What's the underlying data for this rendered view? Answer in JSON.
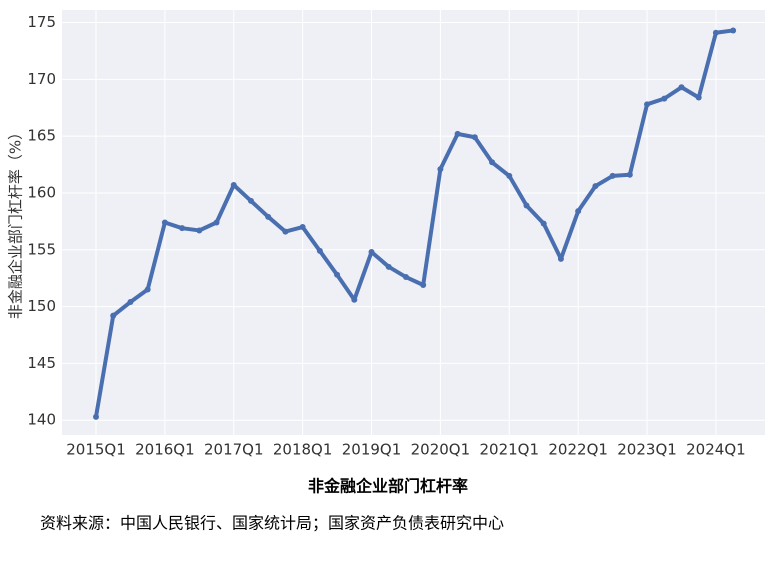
{
  "chart_data": {
    "type": "line",
    "y_label": "非金融企业部门杠杆率（%）",
    "caption": "非金融企业部门杠杆率",
    "source": "资料来源：中国人民银行、国家统计局；国家资产负债表研究中心",
    "categories": [
      "2015Q1",
      null,
      null,
      null,
      "2016Q1",
      null,
      null,
      null,
      "2017Q1",
      null,
      null,
      null,
      "2018Q1",
      null,
      null,
      null,
      "2019Q1",
      null,
      null,
      null,
      "2020Q1",
      null,
      null,
      null,
      "2021Q1",
      null,
      null,
      null,
      "2022Q1",
      null,
      null,
      null,
      "2023Q1",
      null,
      null,
      null,
      "2024Q1",
      null
    ],
    "series": [
      {
        "name": "非金融企业部门杠杆率",
        "color": "#4a6fb0",
        "values": [
          140.3,
          149.2,
          150.4,
          151.5,
          157.4,
          156.9,
          156.7,
          157.4,
          160.7,
          159.3,
          157.9,
          156.6,
          157.0,
          154.9,
          152.8,
          150.6,
          154.8,
          153.5,
          152.6,
          151.9,
          162.1,
          165.2,
          164.9,
          162.7,
          161.5,
          158.9,
          157.3,
          154.2,
          158.4,
          160.6,
          161.5,
          161.6,
          167.8,
          168.3,
          169.3,
          168.4,
          174.1,
          174.3
        ]
      }
    ],
    "ylim": [
      138.7,
      176.1
    ],
    "yticks": [
      140,
      145,
      150,
      155,
      160,
      165,
      170,
      175
    ],
    "grid": true,
    "background": "#eef0f6"
  }
}
